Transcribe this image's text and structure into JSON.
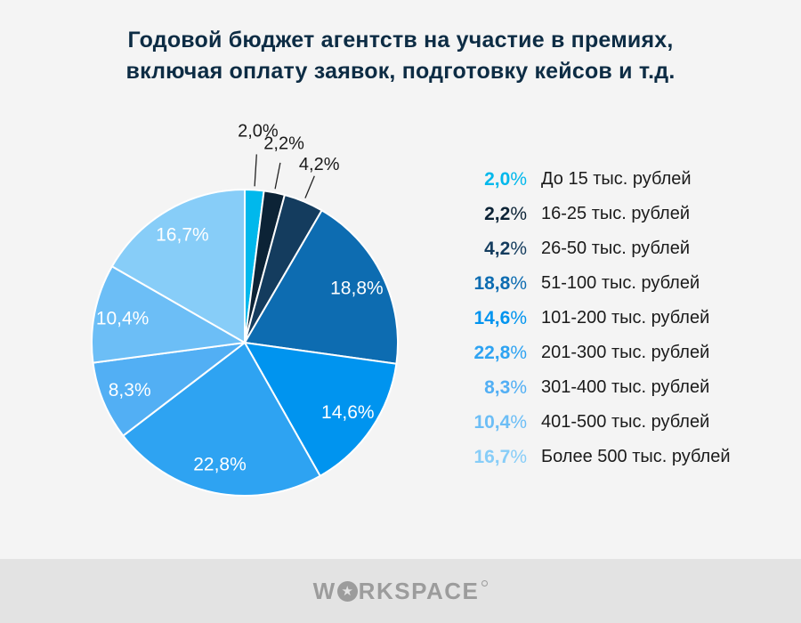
{
  "page": {
    "background": "#f4f4f4",
    "footer_background": "#e3e3e3"
  },
  "header": {
    "title_line1": "Годовой бюджет агентств на участие в премиях,",
    "title_line2": "включая оплату заявок, подготовку кейсов и т.д.",
    "title_color": "#0d2c44"
  },
  "chart_data": {
    "type": "pie",
    "title": "Годовой бюджет агентств на участие в премиях, включая оплату заявок, подготовку кейсов и т.д.",
    "percent_sign": "%",
    "direction": "clockwise",
    "start_angle_deg": 0,
    "legend_position": "right",
    "inside_label_color": "#ffffff",
    "callout_text_color": "#1a1a1a",
    "callout_line_color": "#222222",
    "slices": [
      {
        "label": "До 15 тыс. рублей",
        "value": 2.0,
        "value_display": "2,0",
        "color": "#00b8ec"
      },
      {
        "label": "16-25 тыс. рублей",
        "value": 2.2,
        "value_display": "2,2",
        "color": "#0c2336"
      },
      {
        "label": "26-50 тыс. рублей",
        "value": 4.2,
        "value_display": "4,2",
        "color": "#143c5e"
      },
      {
        "label": "51-100 тыс. рублей",
        "value": 18.8,
        "value_display": "18,8",
        "color": "#0d6cb1"
      },
      {
        "label": "101-200 тыс. рублей",
        "value": 14.6,
        "value_display": "14,6",
        "color": "#0094ef"
      },
      {
        "label": "201-300 тыс. рублей",
        "value": 22.8,
        "value_display": "22,8",
        "color": "#2ea3f2"
      },
      {
        "label": "301-400 тыс. рублей",
        "value": 8.3,
        "value_display": "8,3",
        "color": "#52aff4"
      },
      {
        "label": "401-500 тыс. рублей",
        "value": 10.4,
        "value_display": "10,4",
        "color": "#6cbef6"
      },
      {
        "label": "Более 500 тыс. рублей",
        "value": 16.7,
        "value_display": "16,7",
        "color": "#87cdf8"
      }
    ]
  },
  "footer": {
    "brand_name": "WORKSPACE",
    "brand_prefix": "W",
    "brand_suffix": "RKSPACE",
    "logo_color": "#9c9c9c"
  }
}
